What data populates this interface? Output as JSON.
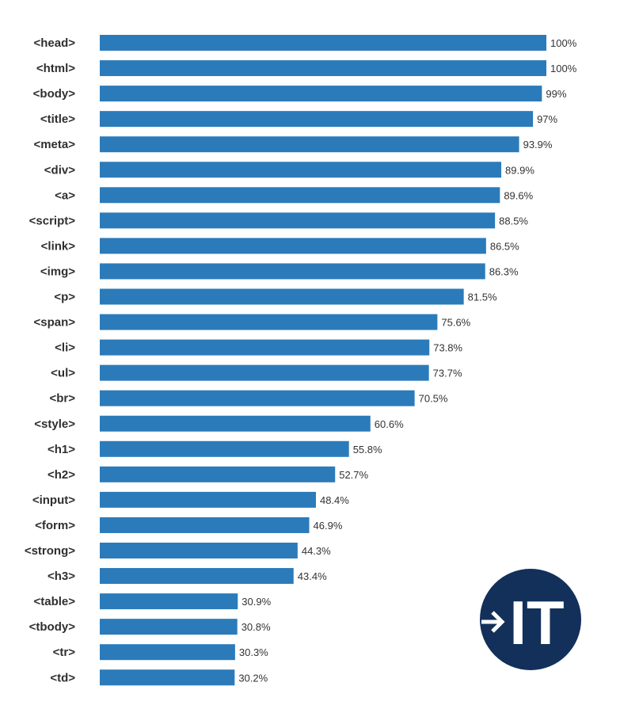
{
  "chart_data": {
    "type": "bar",
    "orientation": "horizontal",
    "categories": [
      "<head>",
      "<html>",
      "<body>",
      "<title>",
      "<meta>",
      "<div>",
      "<a>",
      "<script>",
      "<link>",
      "<img>",
      "<p>",
      "<span>",
      "<li>",
      "<ul>",
      "<br>",
      "<style>",
      "<h1>",
      "<h2>",
      "<input>",
      "<form>",
      "<strong>",
      "<h3>",
      "<table>",
      "<tbody>",
      "<tr>",
      "<td>"
    ],
    "values": [
      100,
      100,
      99,
      97,
      93.9,
      89.9,
      89.6,
      88.5,
      86.5,
      86.3,
      81.5,
      75.6,
      73.8,
      73.7,
      70.5,
      60.6,
      55.8,
      52.7,
      48.4,
      46.9,
      44.3,
      43.4,
      30.9,
      30.8,
      30.3,
      30.2
    ],
    "value_labels": [
      "100%",
      "100%",
      "99%",
      "97%",
      "93.9%",
      "89.9%",
      "89.6%",
      "88.5%",
      "86.5%",
      "86.3%",
      "81.5%",
      "75.6%",
      "73.8%",
      "73.7%",
      "70.5%",
      "60.6%",
      "55.8%",
      "52.7%",
      "48.4%",
      "46.9%",
      "44.3%",
      "43.4%",
      "30.9%",
      "30.8%",
      "30.3%",
      "30.2%"
    ],
    "unit": "%",
    "xlim": [
      0,
      100
    ],
    "grid": false,
    "legend": "none",
    "bar_color": "#2b7bba"
  },
  "logo": {
    "text": "IT",
    "background_color": "#12305a",
    "foreground_color": "#ffffff",
    "icon": "arrow-right-icon"
  }
}
